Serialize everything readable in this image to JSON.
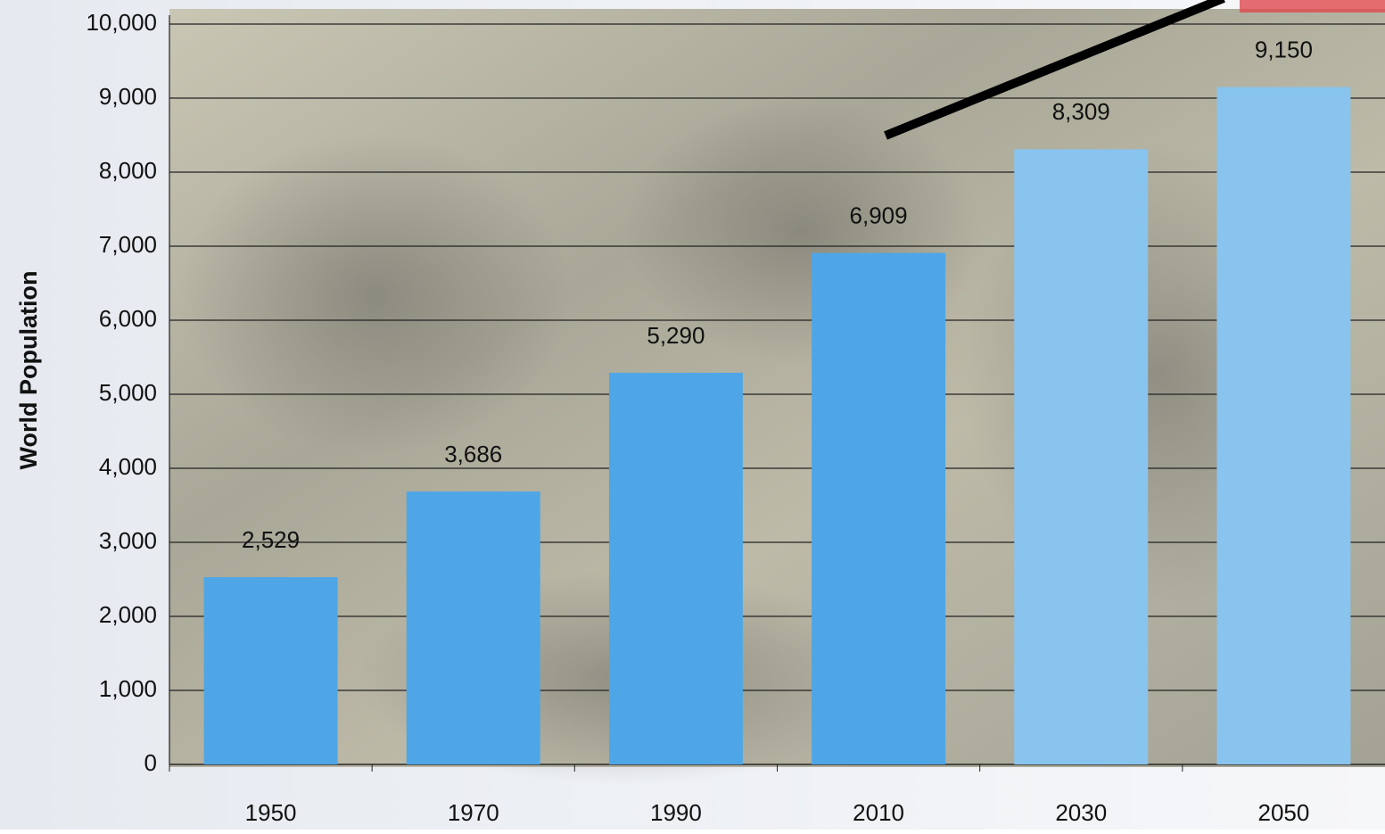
{
  "chart_data": {
    "type": "bar",
    "y_label": "World Population",
    "categories": [
      "1950",
      "1970",
      "1990",
      "2010",
      "2030",
      "2050"
    ],
    "values": [
      2529,
      3686,
      5290,
      6909,
      8309,
      9150
    ],
    "value_labels": [
      "2,529",
      "3,686",
      "5,290",
      "6,909",
      "8,309",
      "9,150"
    ],
    "colors": [
      "#4ea6e6",
      "#4ea6e6",
      "#4ea6e6",
      "#4ea6e6",
      "#88c4ee",
      "#88c4ee"
    ],
    "ylim": [
      0,
      10000
    ],
    "yticks": [
      0,
      {
        "value": 1000,
        "label": "1,000"
      },
      {
        "value": 2000,
        "label": "2,000"
      },
      {
        "value": 3000,
        "label": "3,000"
      },
      {
        "value": 4000,
        "label": "4,000"
      },
      {
        "value": 5000,
        "label": "5,000"
      },
      {
        "value": 6000,
        "label": "6,000"
      },
      {
        "value": 7000,
        "label": "7,000"
      },
      {
        "value": 8000,
        "label": "8,000"
      },
      {
        "value": 9000,
        "label": "9,000"
      },
      {
        "value": 10000,
        "label": "10,000"
      }
    ],
    "grid": true
  }
}
